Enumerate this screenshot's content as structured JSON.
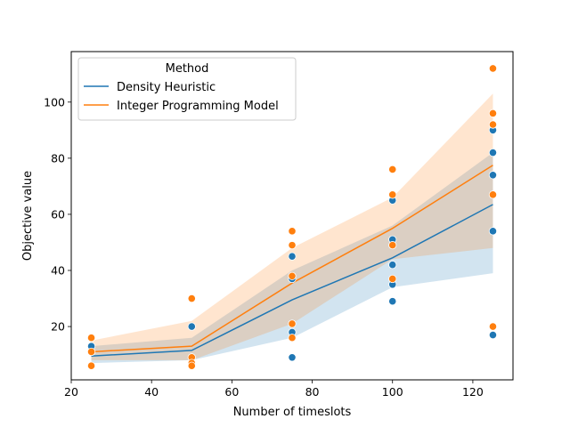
{
  "chart_data": {
    "type": "line",
    "xlabel": "Number of timeslots",
    "ylabel": "Objective value",
    "xlim": [
      20,
      130
    ],
    "ylim": [
      1,
      118
    ],
    "xticks": [
      20,
      40,
      60,
      80,
      100,
      120
    ],
    "yticks": [
      20,
      40,
      60,
      80,
      100
    ],
    "grid": false,
    "legend": {
      "title": "Method",
      "placement": "top-left"
    },
    "series": [
      {
        "name": "Density Heuristic",
        "color": "#1f77b4",
        "mean": {
          "x": [
            25,
            50,
            75,
            100,
            125
          ],
          "y": [
            9.5,
            11.5,
            29.5,
            44.5,
            63.5
          ]
        },
        "ci_lower": [
          7,
          8,
          16,
          34,
          39
        ],
        "ci_upper": [
          13,
          16,
          40,
          56,
          82
        ],
        "points": [
          {
            "x": 25,
            "y": 11
          },
          {
            "x": 25,
            "y": 13
          },
          {
            "x": 25,
            "y": 16
          },
          {
            "x": 50,
            "y": 20
          },
          {
            "x": 50,
            "y": 7
          },
          {
            "x": 75,
            "y": 45
          },
          {
            "x": 75,
            "y": 37
          },
          {
            "x": 75,
            "y": 18
          },
          {
            "x": 75,
            "y": 9
          },
          {
            "x": 100,
            "y": 65
          },
          {
            "x": 100,
            "y": 51
          },
          {
            "x": 100,
            "y": 42
          },
          {
            "x": 100,
            "y": 35
          },
          {
            "x": 100,
            "y": 29
          },
          {
            "x": 125,
            "y": 90
          },
          {
            "x": 125,
            "y": 82
          },
          {
            "x": 125,
            "y": 74
          },
          {
            "x": 125,
            "y": 54
          },
          {
            "x": 125,
            "y": 17
          }
        ]
      },
      {
        "name": "Integer Programming Model",
        "color": "#ff7f0e",
        "mean": {
          "x": [
            25,
            50,
            75,
            100,
            125
          ],
          "y": [
            11,
            13,
            35.5,
            55,
            77.5
          ]
        },
        "ci_lower": [
          8,
          8,
          21,
          44,
          48
        ],
        "ci_upper": [
          15,
          22,
          48,
          66,
          103
        ],
        "points": [
          {
            "x": 25,
            "y": 16
          },
          {
            "x": 25,
            "y": 11
          },
          {
            "x": 25,
            "y": 6
          },
          {
            "x": 50,
            "y": 30
          },
          {
            "x": 50,
            "y": 9
          },
          {
            "x": 50,
            "y": 7
          },
          {
            "x": 50,
            "y": 6
          },
          {
            "x": 75,
            "y": 54
          },
          {
            "x": 75,
            "y": 49
          },
          {
            "x": 75,
            "y": 38
          },
          {
            "x": 75,
            "y": 21
          },
          {
            "x": 75,
            "y": 16
          },
          {
            "x": 100,
            "y": 76
          },
          {
            "x": 100,
            "y": 67
          },
          {
            "x": 100,
            "y": 49
          },
          {
            "x": 100,
            "y": 37
          },
          {
            "x": 125,
            "y": 112
          },
          {
            "x": 125,
            "y": 96
          },
          {
            "x": 125,
            "y": 92
          },
          {
            "x": 125,
            "y": 67
          },
          {
            "x": 125,
            "y": 20
          }
        ]
      }
    ]
  }
}
